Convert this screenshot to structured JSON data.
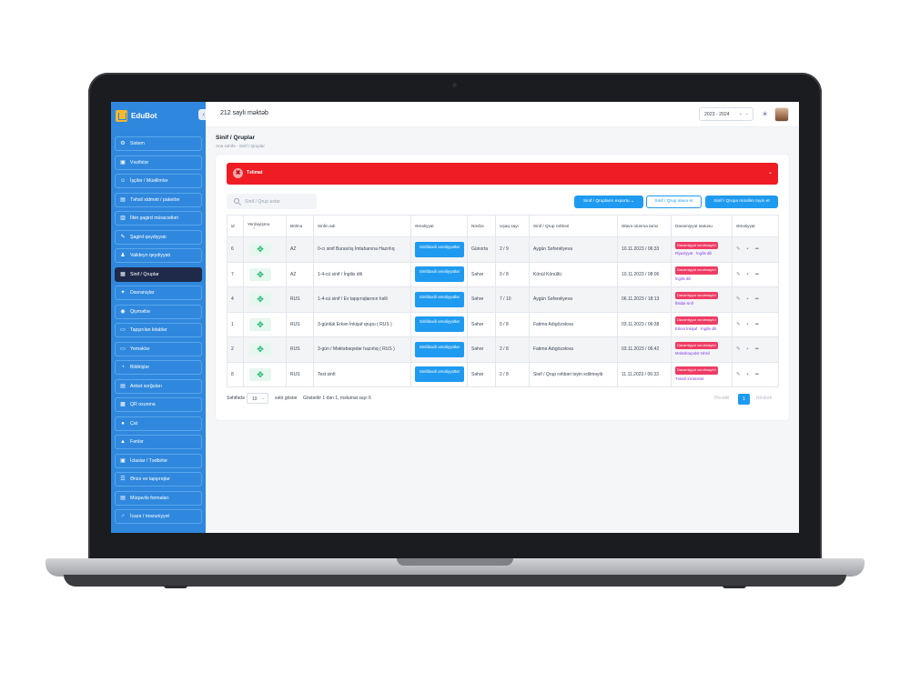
{
  "brand": {
    "name": "EduBot"
  },
  "header": {
    "school_name": "212 saylı məktəb",
    "year_selected": "2023 - 2024",
    "clear_glyph": "×",
    "caret_glyph": "⌄"
  },
  "sidebar": {
    "items": [
      {
        "label": "Sistem",
        "icon": "gear-icon",
        "glyph": "⚙"
      },
      {
        "label": "Vəzifələr",
        "icon": "briefcase-icon",
        "glyph": "▣"
      },
      {
        "label": "İşçilər / Müəllimlər",
        "icon": "users-icon",
        "glyph": "☺"
      },
      {
        "label": "Təhsil xidməti / paketlər",
        "icon": "package-icon",
        "glyph": "▤"
      },
      {
        "label": "İlkin şagird müraciətləri",
        "icon": "inbox-icon",
        "glyph": "▥"
      },
      {
        "label": "Şagird qeydiyyatı",
        "icon": "student-icon",
        "glyph": "✎"
      },
      {
        "label": "Valideyn qeydiyyatı",
        "icon": "parent-icon",
        "glyph": "♟"
      },
      {
        "label": "Sinif / Qruplar",
        "icon": "class-icon",
        "glyph": "▦"
      },
      {
        "label": "Davranışlar",
        "icon": "behavior-icon",
        "glyph": "✦"
      },
      {
        "label": "Qiymətlər",
        "icon": "grades-icon",
        "glyph": "◉"
      },
      {
        "label": "Tapşırılan kitablar",
        "icon": "books-icon",
        "glyph": "▭"
      },
      {
        "label": "Yeməklər",
        "icon": "meals-icon",
        "glyph": "▭"
      },
      {
        "label": "Bildirişlər",
        "icon": "bell-icon",
        "glyph": "◔"
      },
      {
        "label": "Anket sorğuları",
        "icon": "survey-icon",
        "glyph": "▤"
      },
      {
        "label": "QR oxunma",
        "icon": "qr-icon",
        "glyph": "▩"
      },
      {
        "label": "Çat",
        "icon": "chat-icon",
        "glyph": "●"
      },
      {
        "label": "Fənlər",
        "icon": "subjects-icon",
        "glyph": "▲"
      },
      {
        "label": "İclaslar / Tədbirlər",
        "icon": "events-icon",
        "glyph": "▣"
      },
      {
        "label": "Ərizə və tapşırıqlar",
        "icon": "tasks-icon",
        "glyph": "☰"
      },
      {
        "label": "Müqavilə formaları",
        "icon": "contract-icon",
        "glyph": "▤"
      },
      {
        "label": "İcazə / məzuniyyət",
        "icon": "leave-icon",
        "glyph": "♂"
      }
    ],
    "active_index": 7
  },
  "page": {
    "title": "Sinif / Qruplar",
    "breadcrumb": "Ana səhifə  -  Sinif / Qruplar"
  },
  "alert": {
    "title": "Təlimat",
    "icon_glyph": "✖",
    "chevron": "⌄"
  },
  "search": {
    "placeholder": "Sinif / Qrup axtar"
  },
  "toolbar": {
    "export_label": "Sinif / Qrupların exportu ⌄",
    "add_label": "Sinif / Qrup əlavə et",
    "assign_label": "Sinif / Qrupa müəllim təyin et"
  },
  "table": {
    "headers": [
      "id",
      "Yerdəyişmə",
      "Bölmə",
      "Sinfin adı",
      "Əməliyyat",
      "Növbə",
      "Uşaq sayı",
      "Sinif / Qrup rəhbəri",
      "Əlavə olunma tarixi",
      "Davamiyyət statusu",
      "Əməliyyat"
    ],
    "sort_glyph": "^",
    "move_glyph": "✥",
    "action_button": "Sinifdaxili əməliyyatlar",
    "badge_text": "Davamiyyət vurulmayıb!",
    "action_icons": [
      "✎",
      "▪",
      "➦"
    ],
    "rows": [
      {
        "id": "6",
        "section": "AZ",
        "name": "0-cı sinif Buraxılış İmtahanına Hazırlıq",
        "shift": "Günorta",
        "count": "2 / 9",
        "teacher": "Aygün Səfərəliyeva",
        "date": "10.11.2023 / 06:33",
        "subjects": [
          "Riyaziyyat",
          "İngilis dili"
        ]
      },
      {
        "id": "7",
        "section": "AZ",
        "name": "1-4-cü sinif / İngilis dili",
        "shift": "Səhər",
        "count": "0 / 8",
        "teacher": "Könül Könüllü",
        "date": "10.11.2023 / 08:06",
        "subjects": [
          "İngilis dili"
        ]
      },
      {
        "id": "4",
        "section": "RUS",
        "name": "1-4-cü sinif / Ev tapşırıqlarının həlli",
        "shift": "Səhər",
        "count": "7 / 10",
        "teacher": "Aygün Səfərəliyeva",
        "date": "06.11.2023 / 18:13",
        "subjects": [
          "İbtidai sinif"
        ]
      },
      {
        "id": "1",
        "section": "RUS",
        "name": "3-günlük Erkən İnkişaf qrupu ( RUS )",
        "shift": "Səhər",
        "count": "0 / 8",
        "teacher": "Fatimə Adıgözəlova",
        "date": "03.11.2023 / 06:38",
        "subjects": [
          "Erkən İnkişaf",
          "İngilis dili"
        ]
      },
      {
        "id": "2",
        "section": "RUS",
        "name": "3-gün / Məktəbəqədər hazırlıq ( RUS )",
        "shift": "Səhər",
        "count": "2 / 8",
        "teacher": "Fatimə Adıgözəlova",
        "date": "03.11.2023 / 06:42",
        "subjects": [
          "Məktəbəqədər təhsil"
        ]
      },
      {
        "id": "8",
        "section": "RUS",
        "name": "Test sinfi",
        "shift": "Səhər",
        "count": "2 / 8",
        "teacher": "Sinif / Qrup rəhbəri təyin edilməyib",
        "date": "11.11.2023 / 06:33",
        "subjects": [
          "Təsviri incəsənət"
        ]
      }
    ]
  },
  "pagination": {
    "label_page": "Səhifədə",
    "page_size": "10",
    "size_caret": "⌄",
    "label_show": "sətir göstər",
    "info": "Göstərilir 1 dən 1, məlumat sayı 6",
    "prev": "Əvvəlki",
    "current": "1",
    "next": "Növbəti"
  },
  "colors": {
    "sidebar": "#2f88dd",
    "active": "#1f2a4a",
    "primary": "#1e9bf0",
    "alert": "#ef1c24",
    "badge": "#ee3c64"
  }
}
